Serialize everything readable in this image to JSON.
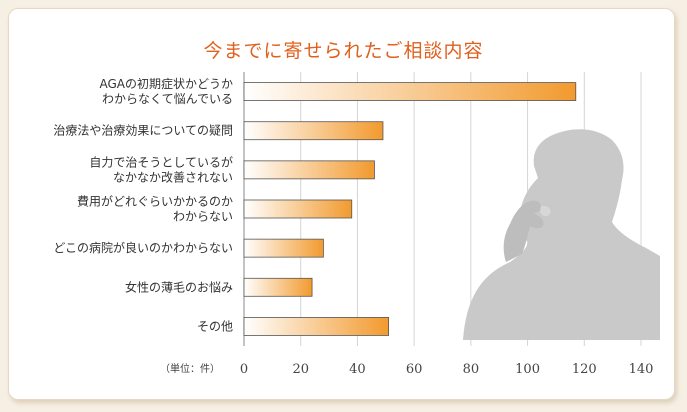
{
  "title": "今までに寄せられたご相談内容",
  "unit_label": "（単位：件）",
  "colors": {
    "bar_start": "#ffffff",
    "bar_end": "#f29a2e",
    "bar_stroke": "#555555",
    "title": "#e0601e",
    "silhouette": "#c9c9c9"
  },
  "chart_data": {
    "type": "bar",
    "orientation": "horizontal",
    "title": "今までに寄せられたご相談内容",
    "xlim": [
      0,
      140
    ],
    "ticks": [
      0,
      20,
      40,
      60,
      80,
      100,
      120,
      140
    ],
    "grid": true,
    "categories": [
      [
        "AGAの初期症状かどうか",
        "わからなくて悩んでいる"
      ],
      [
        "治療法や治療効果についての疑問"
      ],
      [
        "自力で治そうとしているが",
        "なかなか改善されない"
      ],
      [
        "費用がどれぐらいかかるのか",
        "わからない"
      ],
      [
        "どこの病院が良いのかわからない"
      ],
      [
        "女性の薄毛のお悩み"
      ],
      [
        "その他"
      ]
    ],
    "values": [
      117,
      49,
      46,
      38,
      28,
      24,
      51
    ]
  }
}
